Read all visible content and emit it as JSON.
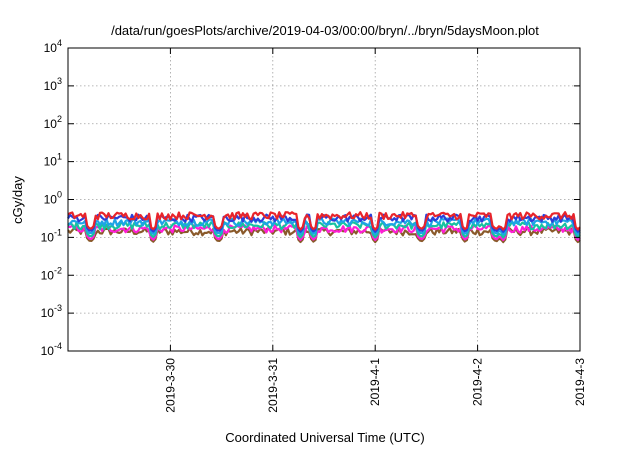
{
  "chart_data": {
    "type": "line",
    "title": "/data/run/goesPlots/archive/2019-04-03/00:00/bryn/../bryn/5daysMoon.plot",
    "xlabel": "Coordinated Universal Time (UTC)",
    "ylabel": "cGy/day",
    "yscale": "log",
    "ylim": [
      0.0001,
      10000
    ],
    "xlim": [
      0,
      5
    ],
    "grid": true,
    "y_ticks": [
      {
        "value": 0.0001,
        "base": "10",
        "exp": "-4"
      },
      {
        "value": 0.001,
        "base": "10",
        "exp": "-3"
      },
      {
        "value": 0.01,
        "base": "10",
        "exp": "-2"
      },
      {
        "value": 0.1,
        "base": "10",
        "exp": "-1"
      },
      {
        "value": 1,
        "base": "10",
        "exp": "0"
      },
      {
        "value": 10,
        "base": "10",
        "exp": "1"
      },
      {
        "value": 100,
        "base": "10",
        "exp": "2"
      },
      {
        "value": 1000,
        "base": "10",
        "exp": "3"
      },
      {
        "value": 10000,
        "base": "10",
        "exp": "4"
      }
    ],
    "x_ticks": [
      {
        "value": 1,
        "label": "2019-3-30"
      },
      {
        "value": 2,
        "label": "2019-3-31"
      },
      {
        "value": 3,
        "label": "2019-4-1"
      },
      {
        "value": 4,
        "label": "2019-4-2"
      },
      {
        "value": 5,
        "label": "2019-4-3"
      }
    ],
    "series": [
      {
        "color": "#e8242b",
        "level": 0.38,
        "dip_level": 0.16
      },
      {
        "color": "#2b3fd9",
        "level": 0.33,
        "dip_level": 0.14
      },
      {
        "color": "#1ea3e6",
        "level": 0.26,
        "dip_level": 0.12
      },
      {
        "color": "#17c2a0",
        "level": 0.21,
        "dip_level": 0.1
      },
      {
        "color": "#ff1ed6",
        "level": 0.17,
        "dip_level": 0.085
      },
      {
        "color": "#8a5a2b",
        "level": 0.145,
        "dip_level": 0.075
      }
    ],
    "dips_x": [
      0.22,
      0.83,
      1.47,
      2.27,
      2.4,
      3.0,
      3.45,
      3.88,
      4.18,
      4.25,
      4.98
    ]
  }
}
